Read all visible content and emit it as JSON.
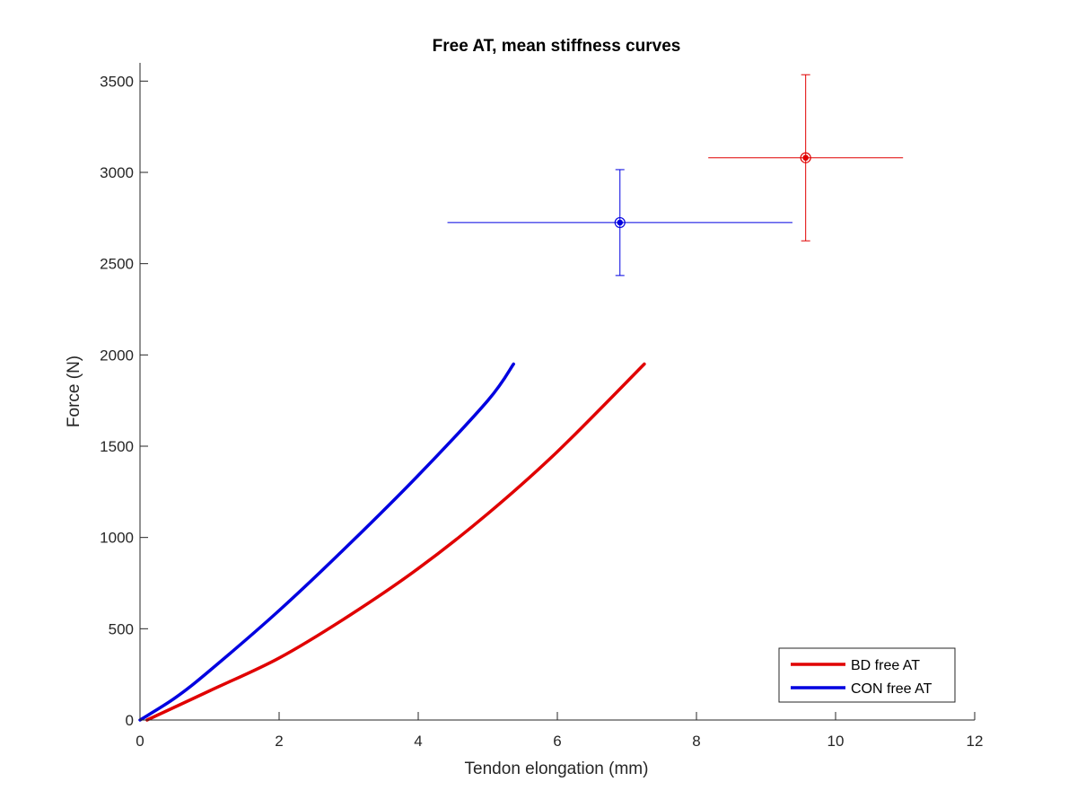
{
  "chart_data": {
    "type": "line",
    "title": "Free AT, mean stiffness curves",
    "xlabel": "Tendon elongation (mm)",
    "ylabel": "Force (N)",
    "xlim": [
      0,
      12
    ],
    "ylim": [
      0,
      3600
    ],
    "xticks": [
      0,
      2,
      4,
      6,
      8,
      10,
      12
    ],
    "xtick_labels": [
      "0",
      "2",
      "4",
      "6",
      "8",
      "10",
      "12"
    ],
    "yticks": [
      0,
      500,
      1000,
      1500,
      2000,
      2500,
      3000,
      3500
    ],
    "ytick_labels": [
      "0",
      "500",
      "1000",
      "1500",
      "2000",
      "2500",
      "3000",
      "3500"
    ],
    "grid": false,
    "legend_position": "bottom-right",
    "series": [
      {
        "name": "BD free AT",
        "color": "#e00000",
        "x": [
          0.1,
          1.0,
          2.0,
          3.0,
          4.0,
          5.0,
          6.0,
          7.25
        ],
        "y": [
          0,
          160,
          340,
          570,
          830,
          1130,
          1470,
          1950
        ]
      },
      {
        "name": "CON free AT",
        "color": "#0000e0",
        "x": [
          0,
          0.5,
          1.0,
          2.0,
          3.0,
          4.0,
          5.0,
          5.37
        ],
        "y": [
          0,
          120,
          270,
          600,
          960,
          1340,
          1750,
          1950
        ]
      }
    ],
    "error_points": [
      {
        "color": "#e00000",
        "x": 9.57,
        "y": 3080,
        "x_err": [
          8.17,
          10.97
        ],
        "y_err": [
          2625,
          3535
        ]
      },
      {
        "color": "#0000e0",
        "x": 6.9,
        "y": 2725,
        "x_err": [
          4.42,
          9.38
        ],
        "y_err": [
          2435,
          3015
        ]
      }
    ]
  }
}
